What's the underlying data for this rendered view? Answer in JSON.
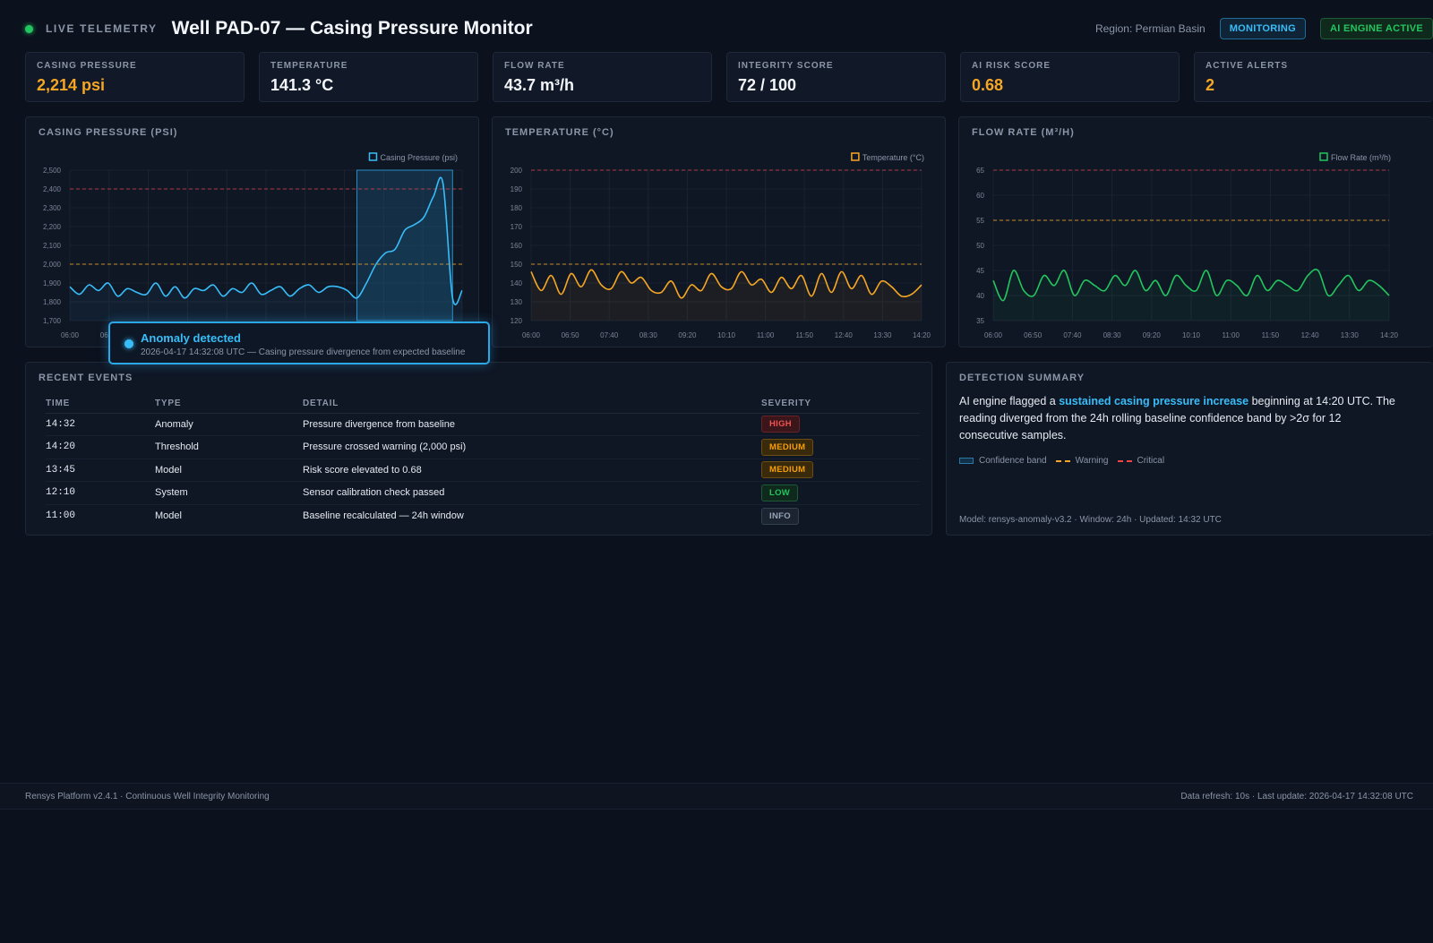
{
  "header": {
    "live_label": "LIVE TELEMETRY",
    "title": "Well PAD-07 — Casing Pressure Monitor",
    "region": "Region: Permian Basin",
    "status_badge": "MONITORING",
    "ai_badge": "AI ENGINE ACTIVE"
  },
  "kpis": [
    {
      "label": "CASING PRESSURE",
      "value": "2,214 psi",
      "color": "#f5a623"
    },
    {
      "label": "TEMPERATURE",
      "value": "141.3 °C",
      "color": "#f3f6fa"
    },
    {
      "label": "FLOW RATE",
      "value": "43.7 m³/h",
      "color": "#f3f6fa"
    },
    {
      "label": "INTEGRITY SCORE",
      "value": "72 / 100",
      "color": "#f3f6fa"
    },
    {
      "label": "AI RISK SCORE",
      "value": "0.68",
      "color": "#f5a623"
    },
    {
      "label": "ACTIVE ALERTS",
      "value": "2",
      "color": "#f5a623"
    }
  ],
  "charts_titles": {
    "pressure": "CASING PRESSURE (PSI)",
    "temperature": "TEMPERATURE (°C)",
    "flow": "FLOW RATE (M³/H)"
  },
  "chart_data": [
    {
      "type": "line",
      "id": "pressure",
      "title": "CASING PRESSURE (PSI)",
      "legend": "Casing Pressure (psi)",
      "legend_position": "top-right",
      "color": "#38bdf8",
      "ylim": [
        1700,
        2500
      ],
      "yticks": [
        1700,
        1800,
        1900,
        2000,
        2100,
        2200,
        2300,
        2400,
        2500
      ],
      "ytick_labels": [
        "1,700",
        "1,800",
        "1,900",
        "2,000",
        "2,100",
        "2,200",
        "2,300",
        "2,400",
        "2,500"
      ],
      "xticks": [
        "06:00",
        "06:50"
      ],
      "grid": true,
      "warning": 2000,
      "critical": 2400,
      "band": {
        "from_index": 30,
        "to_index": 40
      },
      "values": [
        1880,
        1840,
        1890,
        1860,
        1900,
        1830,
        1870,
        1850,
        1840,
        1900,
        1830,
        1880,
        1820,
        1870,
        1860,
        1890,
        1830,
        1870,
        1850,
        1900,
        1840,
        1860,
        1880,
        1830,
        1870,
        1890,
        1850,
        1880,
        1880,
        1860,
        1820,
        1900,
        2000,
        2060,
        2080,
        2180,
        2210,
        2250,
        2360,
        2430,
        1820,
        1860
      ]
    },
    {
      "type": "line",
      "id": "temperature",
      "title": "TEMPERATURE (°C)",
      "legend": "Temperature (°C)",
      "legend_position": "top-right",
      "color": "#f5a623",
      "ylim": [
        120,
        200
      ],
      "yticks": [
        120,
        130,
        140,
        150,
        160,
        170,
        180,
        190,
        200
      ],
      "xticks": [
        "06:00",
        "06:50",
        "07:40",
        "08:30",
        "09:20",
        "10:10",
        "11:00",
        "11:50",
        "12:40",
        "13:30",
        "14:20"
      ],
      "grid": true,
      "warning": 150,
      "critical": 200,
      "values": [
        146,
        136,
        144,
        134,
        145,
        138,
        147,
        139,
        137,
        146,
        140,
        143,
        136,
        135,
        141,
        132,
        139,
        136,
        145,
        138,
        137,
        146,
        139,
        142,
        135,
        143,
        137,
        144,
        133,
        145,
        135,
        146,
        137,
        144,
        134,
        141,
        138,
        133,
        134,
        139
      ]
    },
    {
      "type": "line",
      "id": "flow",
      "title": "FLOW RATE (M³/H)",
      "legend": "Flow Rate (m³/h)",
      "legend_position": "top-right",
      "color": "#22c55e",
      "ylim": [
        35,
        65
      ],
      "yticks": [
        35,
        40,
        45,
        50,
        55,
        60,
        65
      ],
      "xticks": [
        "06:00",
        "06:50",
        "07:40",
        "08:30",
        "09:20",
        "10:10",
        "11:00",
        "11:50",
        "12:40",
        "13:30",
        "14:20"
      ],
      "grid": true,
      "warning": 55,
      "critical": 65,
      "values": [
        43,
        39,
        45,
        41,
        40,
        44,
        42,
        45,
        40,
        43,
        42,
        41,
        44,
        42,
        45,
        41,
        43,
        40,
        44,
        42,
        41,
        45,
        40,
        43,
        42,
        40,
        44,
        41,
        43,
        42,
        41,
        44,
        45,
        40,
        42,
        44,
        41,
        43,
        42,
        40
      ]
    }
  ],
  "tooltip": {
    "title": "Anomaly detected",
    "subtitle": "2026-04-17 14:32:08 UTC — Casing pressure divergence from expected baseline"
  },
  "events": {
    "title": "RECENT EVENTS",
    "columns": [
      "TIME",
      "TYPE",
      "DETAIL",
      "SEVERITY"
    ],
    "rows": [
      {
        "time": "14:32",
        "type": "Anomaly",
        "detail": "Pressure divergence from baseline",
        "severity": "HIGH"
      },
      {
        "time": "14:20",
        "type": "Threshold",
        "detail": "Pressure crossed warning (2,000 psi)",
        "severity": "MEDIUM"
      },
      {
        "time": "13:45",
        "type": "Model",
        "detail": "Risk score elevated to 0.68",
        "severity": "MEDIUM"
      },
      {
        "time": "12:10",
        "type": "System",
        "detail": "Sensor calibration check passed",
        "severity": "LOW"
      },
      {
        "time": "11:00",
        "type": "Model",
        "detail": "Baseline recalculated — 24h window",
        "severity": "INFO"
      }
    ]
  },
  "summary": {
    "title": "DETECTION SUMMARY",
    "text_before": "AI engine flagged a ",
    "text_highlight": "sustained casing pressure increase",
    "text_after": " beginning at 14:20 UTC. The reading diverged from the 24h rolling baseline confidence band by >2σ for 12 consecutive samples.",
    "legend_band": "Confidence band",
    "legend_warning": "Warning",
    "legend_critical": "Critical",
    "footer": "Model: rensys-anomaly-v3.2 · Window: 24h · Updated: 14:32 UTC"
  },
  "footer": {
    "left": "Rensys Platform v2.4.1 · Continuous Well Integrity Monitoring",
    "right": "Data refresh: 10s · Last update: 2026-04-17 14:32:08 UTC"
  }
}
